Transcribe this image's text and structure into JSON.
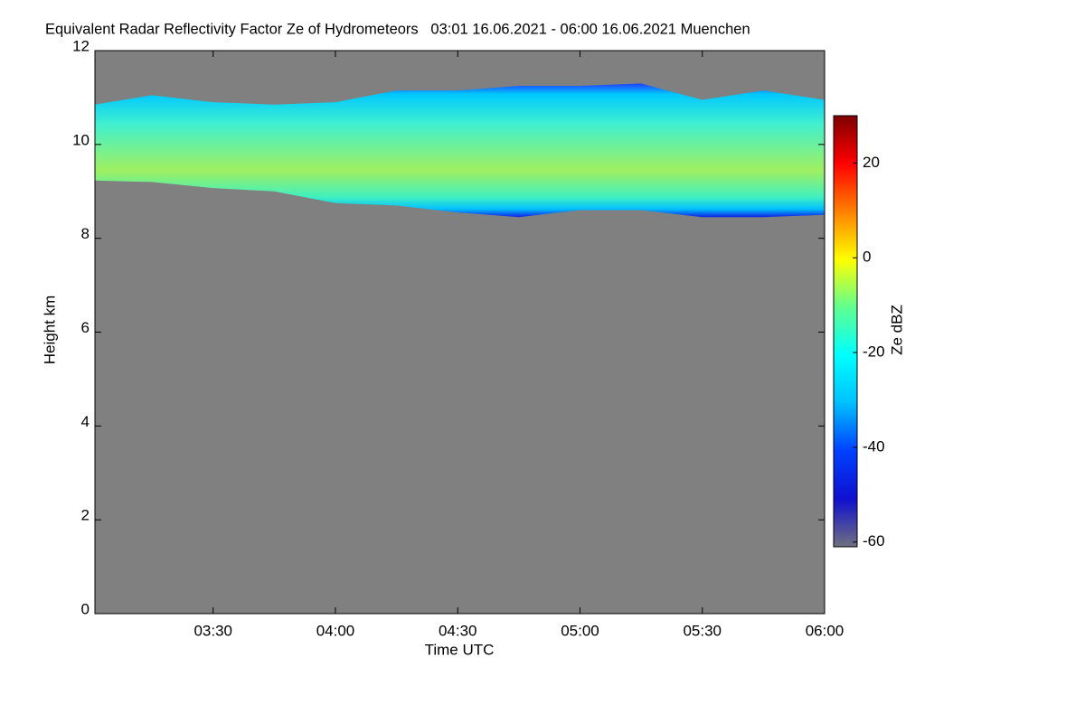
{
  "chart_data": {
    "type": "heatmap",
    "title": "Equivalent Radar Reflectivity Factor Ze of Hydrometeors   03:01 16.06.2021 - 06:00 16.06.2021 Muenchen",
    "x_label": "Time UTC",
    "y_label": "Height km",
    "xlim": [
      3.0167,
      6.0
    ],
    "xticks": [
      {
        "value": 3.5,
        "label": "03:30"
      },
      {
        "value": 4.0,
        "label": "04:00"
      },
      {
        "value": 4.5,
        "label": "04:30"
      },
      {
        "value": 5.0,
        "label": "05:00"
      },
      {
        "value": 5.5,
        "label": "05:30"
      },
      {
        "value": 6.0,
        "label": "06:00"
      }
    ],
    "ylim": [
      0,
      12
    ],
    "yticks": [
      0,
      2,
      4,
      6,
      8,
      10,
      12
    ],
    "background_color": "#808080",
    "cloud": {
      "x": [
        3.0167,
        3.25,
        3.5,
        3.75,
        4.0,
        4.25,
        4.5,
        4.75,
        5.0,
        5.25,
        5.5,
        5.75,
        6.0
      ],
      "top": [
        10.85,
        11.05,
        10.9,
        10.85,
        10.9,
        11.15,
        11.15,
        11.25,
        11.25,
        11.3,
        10.95,
        11.15,
        10.95
      ],
      "base": [
        9.23,
        9.2,
        9.07,
        9.0,
        8.75,
        8.7,
        8.55,
        8.45,
        8.6,
        8.6,
        8.45,
        8.45,
        8.5
      ]
    },
    "colorbar": {
      "label": "Ze dBZ",
      "zlim": [
        -61,
        30
      ],
      "zticks": [
        -60,
        -40,
        -20,
        0,
        20
      ],
      "colors": [
        "#707080",
        "#1010d0",
        "#0040ff",
        "#00c0ff",
        "#00ffff",
        "#60ff90",
        "#ffff00",
        "#ff8000",
        "#ff0000",
        "#800000"
      ]
    }
  }
}
